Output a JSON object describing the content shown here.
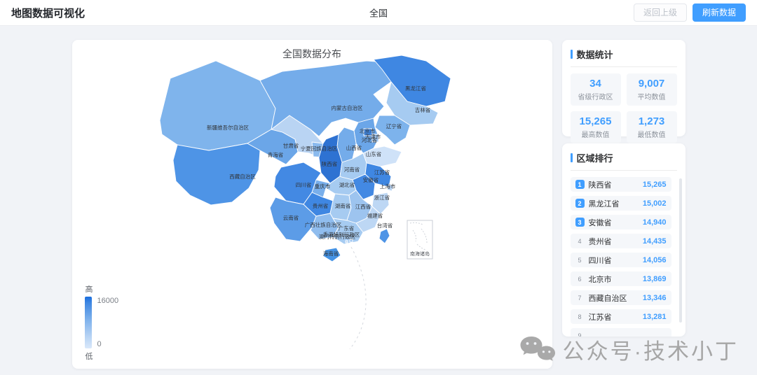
{
  "header": {
    "title": "地图数据可视化",
    "region": "全国",
    "back_button": "返回上级",
    "refresh_button": "刷新数据"
  },
  "map": {
    "title": "全国数据分布",
    "legend": {
      "high": "高",
      "low": "低",
      "max": "16000",
      "min": "0"
    },
    "inset_label": "南海诸岛",
    "provinces": [
      {
        "name": "新疆维吾尔自治区",
        "fill": "#7fb4ec"
      },
      {
        "name": "西藏自治区",
        "fill": "#4e94e6"
      },
      {
        "name": "青海省",
        "fill": "#6ba6e8"
      },
      {
        "name": "甘肃省",
        "fill": "#b9d4f3"
      },
      {
        "name": "宁夏回族自治区",
        "fill": "#8abaee"
      },
      {
        "name": "内蒙古自治区",
        "fill": "#74acea"
      },
      {
        "name": "黑龙江省",
        "fill": "#3f87e2"
      },
      {
        "name": "吉林省",
        "fill": "#a6cbf1"
      },
      {
        "name": "辽宁省",
        "fill": "#7db3ec"
      },
      {
        "name": "河北省",
        "fill": "#6ba6e8"
      },
      {
        "name": "北京市",
        "fill": "#3f87e2"
      },
      {
        "name": "天津市",
        "fill": "#9dc4ef"
      },
      {
        "name": "山西省",
        "fill": "#74acea"
      },
      {
        "name": "山东省",
        "fill": "#cfe2f8"
      },
      {
        "name": "陕西省",
        "fill": "#2e72d2"
      },
      {
        "name": "河南省",
        "fill": "#a6cbf1"
      },
      {
        "name": "江苏省",
        "fill": "#3f87e2"
      },
      {
        "name": "安徽省",
        "fill": "#4389e3"
      },
      {
        "name": "上海市",
        "fill": "#b9d4f3"
      },
      {
        "name": "浙江省",
        "fill": "#bdd7f4"
      },
      {
        "name": "湖北省",
        "fill": "#a6cbf1"
      },
      {
        "name": "重庆市",
        "fill": "#79afeb"
      },
      {
        "name": "四川省",
        "fill": "#4389e3"
      },
      {
        "name": "贵州省",
        "fill": "#3f87e2"
      },
      {
        "name": "云南省",
        "fill": "#5c9ce7"
      },
      {
        "name": "湖南省",
        "fill": "#a6cbf1"
      },
      {
        "name": "江西省",
        "fill": "#9dc4ef"
      },
      {
        "name": "福建省",
        "fill": "#bdd7f4"
      },
      {
        "name": "广西壮族自治区",
        "fill": "#90bdee"
      },
      {
        "name": "广东省",
        "fill": "#a6cbf1"
      },
      {
        "name": "澳门特别行政区",
        "fill": "#b9d4f3"
      },
      {
        "name": "香港特别行政区",
        "fill": "#9dc4ef"
      },
      {
        "name": "台湾省",
        "fill": "#4e94e6"
      },
      {
        "name": "海南省",
        "fill": "#4593e5"
      }
    ]
  },
  "stats": {
    "title": "数据统计",
    "cards": [
      {
        "value": "34",
        "label": "省级行政区"
      },
      {
        "value": "9,007",
        "label": "平均数值"
      },
      {
        "value": "15,265",
        "label": "最高数值"
      },
      {
        "value": "1,273",
        "label": "最低数值"
      }
    ]
  },
  "ranking": {
    "title": "区域排行",
    "items": [
      {
        "rank": "1",
        "name": "陕西省",
        "value": "15,265"
      },
      {
        "rank": "2",
        "name": "黑龙江省",
        "value": "15,002"
      },
      {
        "rank": "3",
        "name": "安徽省",
        "value": "14,940"
      },
      {
        "rank": "4",
        "name": "贵州省",
        "value": "14,435"
      },
      {
        "rank": "5",
        "name": "四川省",
        "value": "14,056"
      },
      {
        "rank": "6",
        "name": "北京市",
        "value": "13,869"
      },
      {
        "rank": "7",
        "name": "西藏自治区",
        "value": "13,346"
      },
      {
        "rank": "8",
        "name": "江苏省",
        "value": "13,281"
      },
      {
        "rank": "9",
        "name": "",
        "value": ""
      }
    ]
  },
  "watermark": {
    "text": "公众号·技术小丁"
  },
  "colors": {
    "accent": "#409eff"
  }
}
